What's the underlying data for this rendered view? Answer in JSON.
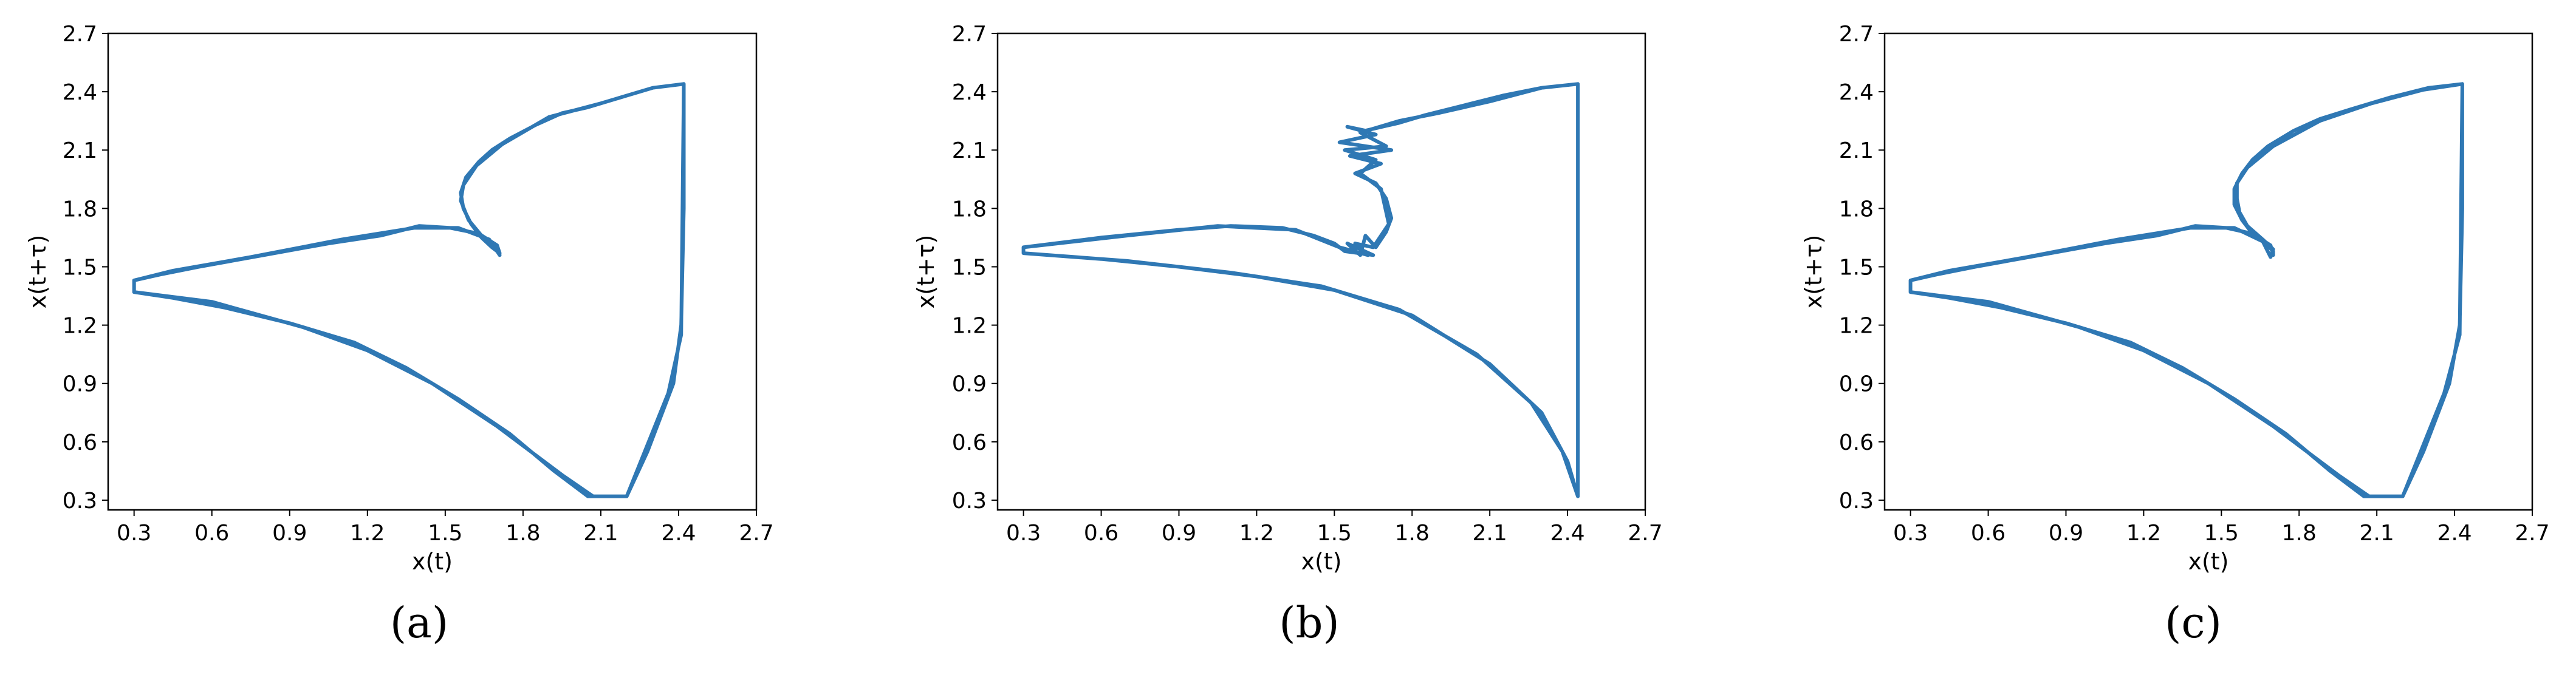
{
  "chart_data": [
    {
      "type": "line",
      "panel_label": "(a)",
      "xlabel": "x(t)",
      "ylabel": "x(t+τ)",
      "xlim": [
        0.2,
        2.7
      ],
      "ylim": [
        0.25,
        2.7
      ],
      "xticks": [
        "0.3",
        "0.6",
        "0.9",
        "1.2",
        "1.5",
        "1.8",
        "2.1",
        "2.4",
        "2.7"
      ],
      "yticks": [
        "0.3",
        "0.6",
        "0.9",
        "1.2",
        "1.5",
        "1.8",
        "2.1",
        "2.4",
        "2.7"
      ],
      "color": "#2f78b4",
      "grid": false,
      "points": [
        [
          2.42,
          2.44
        ],
        [
          2.3,
          2.42
        ],
        [
          2.2,
          2.38
        ],
        [
          2.05,
          2.32
        ],
        [
          1.95,
          2.29
        ],
        [
          1.85,
          2.23
        ],
        [
          1.75,
          2.16
        ],
        [
          1.68,
          2.1
        ],
        [
          1.63,
          2.04
        ],
        [
          1.58,
          1.96
        ],
        [
          1.56,
          1.88
        ],
        [
          1.57,
          1.8
        ],
        [
          1.6,
          1.72
        ],
        [
          1.64,
          1.65
        ],
        [
          1.68,
          1.6
        ],
        [
          1.71,
          1.57
        ],
        [
          1.7,
          1.61
        ],
        [
          1.63,
          1.67
        ],
        [
          1.52,
          1.7
        ],
        [
          1.4,
          1.71
        ],
        [
          1.25,
          1.66
        ],
        [
          1.05,
          1.62
        ],
        [
          0.8,
          1.56
        ],
        [
          0.55,
          1.5
        ],
        [
          0.4,
          1.46
        ],
        [
          0.3,
          1.43
        ],
        [
          0.3,
          1.37
        ],
        [
          0.45,
          1.34
        ],
        [
          0.65,
          1.29
        ],
        [
          0.9,
          1.21
        ],
        [
          1.15,
          1.11
        ],
        [
          1.35,
          0.98
        ],
        [
          1.55,
          0.82
        ],
        [
          1.75,
          0.64
        ],
        [
          1.92,
          0.45
        ],
        [
          2.05,
          0.32
        ],
        [
          2.2,
          0.32
        ],
        [
          2.28,
          0.55
        ],
        [
          2.38,
          0.9
        ],
        [
          2.41,
          1.2
        ],
        [
          2.42,
          1.8
        ],
        [
          2.42,
          2.44
        ],
        [
          2.3,
          2.42
        ],
        [
          2.1,
          2.34
        ],
        [
          1.9,
          2.27
        ],
        [
          1.72,
          2.13
        ],
        [
          1.62,
          2.02
        ],
        [
          1.57,
          1.92
        ],
        [
          1.56,
          1.84
        ],
        [
          1.59,
          1.74
        ],
        [
          1.64,
          1.66
        ],
        [
          1.7,
          1.59
        ],
        [
          1.71,
          1.56
        ],
        [
          1.67,
          1.64
        ],
        [
          1.55,
          1.7
        ],
        [
          1.38,
          1.7
        ],
        [
          1.1,
          1.64
        ],
        [
          0.75,
          1.55
        ],
        [
          0.45,
          1.48
        ],
        [
          0.3,
          1.43
        ],
        [
          0.3,
          1.37
        ],
        [
          0.6,
          1.32
        ],
        [
          0.95,
          1.19
        ],
        [
          1.2,
          1.07
        ],
        [
          1.45,
          0.9
        ],
        [
          1.7,
          0.68
        ],
        [
          1.95,
          0.43
        ],
        [
          2.07,
          0.32
        ],
        [
          2.2,
          0.32
        ],
        [
          2.36,
          0.85
        ],
        [
          2.41,
          1.15
        ],
        [
          2.42,
          2.44
        ]
      ]
    },
    {
      "type": "line",
      "panel_label": "(b)",
      "xlabel": "x(t)",
      "ylabel": "x(t+τ)",
      "xlim": [
        0.2,
        2.7
      ],
      "ylim": [
        0.25,
        2.7
      ],
      "xticks": [
        "0.3",
        "0.6",
        "0.9",
        "1.2",
        "1.5",
        "1.8",
        "2.1",
        "2.4",
        "2.7"
      ],
      "yticks": [
        "0.3",
        "0.6",
        "0.9",
        "1.2",
        "1.5",
        "1.8",
        "2.1",
        "2.4",
        "2.7"
      ],
      "color": "#2f78b4",
      "grid": false,
      "points": [
        [
          2.44,
          2.44
        ],
        [
          2.3,
          2.42
        ],
        [
          2.15,
          2.38
        ],
        [
          2.0,
          2.33
        ],
        [
          1.85,
          2.28
        ],
        [
          1.75,
          2.24
        ],
        [
          1.62,
          2.2
        ],
        [
          1.55,
          2.22
        ],
        [
          1.66,
          2.18
        ],
        [
          1.52,
          2.14
        ],
        [
          1.72,
          2.1
        ],
        [
          1.56,
          2.07
        ],
        [
          1.68,
          2.03
        ],
        [
          1.58,
          1.98
        ],
        [
          1.66,
          1.93
        ],
        [
          1.7,
          1.85
        ],
        [
          1.72,
          1.75
        ],
        [
          1.7,
          1.68
        ],
        [
          1.66,
          1.6
        ],
        [
          1.62,
          1.66
        ],
        [
          1.6,
          1.56
        ],
        [
          1.55,
          1.62
        ],
        [
          1.65,
          1.56
        ],
        [
          1.54,
          1.58
        ],
        [
          1.5,
          1.62
        ],
        [
          1.42,
          1.66
        ],
        [
          1.3,
          1.7
        ],
        [
          1.1,
          1.71
        ],
        [
          0.9,
          1.69
        ],
        [
          0.6,
          1.65
        ],
        [
          0.3,
          1.6
        ],
        [
          0.3,
          1.57
        ],
        [
          0.6,
          1.54
        ],
        [
          0.9,
          1.5
        ],
        [
          1.2,
          1.45
        ],
        [
          1.5,
          1.38
        ],
        [
          1.8,
          1.25
        ],
        [
          2.1,
          1.0
        ],
        [
          2.3,
          0.75
        ],
        [
          2.4,
          0.5
        ],
        [
          2.44,
          0.32
        ],
        [
          2.44,
          2.44
        ],
        [
          2.3,
          2.42
        ],
        [
          2.1,
          2.35
        ],
        [
          1.9,
          2.29
        ],
        [
          1.75,
          2.25
        ],
        [
          1.6,
          2.19
        ],
        [
          1.7,
          2.12
        ],
        [
          1.54,
          2.1
        ],
        [
          1.66,
          2.05
        ],
        [
          1.6,
          1.98
        ],
        [
          1.68,
          1.9
        ],
        [
          1.71,
          1.72
        ],
        [
          1.65,
          1.6
        ],
        [
          1.58,
          1.62
        ],
        [
          1.63,
          1.56
        ],
        [
          1.52,
          1.6
        ],
        [
          1.35,
          1.69
        ],
        [
          1.05,
          1.71
        ],
        [
          0.7,
          1.66
        ],
        [
          0.3,
          1.6
        ],
        [
          0.3,
          1.57
        ],
        [
          0.7,
          1.53
        ],
        [
          1.1,
          1.47
        ],
        [
          1.45,
          1.4
        ],
        [
          1.75,
          1.28
        ],
        [
          2.05,
          1.05
        ],
        [
          2.26,
          0.8
        ],
        [
          2.38,
          0.55
        ],
        [
          2.44,
          0.32
        ]
      ]
    },
    {
      "type": "line",
      "panel_label": "(c)",
      "xlabel": "x(t)",
      "ylabel": "x(t+τ)",
      "xlim": [
        0.2,
        2.7
      ],
      "ylim": [
        0.25,
        2.7
      ],
      "xticks": [
        "0.3",
        "0.6",
        "0.9",
        "1.2",
        "1.5",
        "1.8",
        "2.1",
        "2.4",
        "2.7"
      ],
      "yticks": [
        "0.3",
        "0.6",
        "0.9",
        "1.2",
        "1.5",
        "1.8",
        "2.1",
        "2.4",
        "2.7"
      ],
      "color": "#2f78b4",
      "grid": false,
      "points": [
        [
          2.43,
          2.44
        ],
        [
          2.3,
          2.42
        ],
        [
          2.15,
          2.37
        ],
        [
          2.0,
          2.31
        ],
        [
          1.88,
          2.26
        ],
        [
          1.78,
          2.2
        ],
        [
          1.68,
          2.12
        ],
        [
          1.62,
          2.05
        ],
        [
          1.58,
          1.98
        ],
        [
          1.55,
          1.9
        ],
        [
          1.55,
          1.82
        ],
        [
          1.58,
          1.74
        ],
        [
          1.62,
          1.67
        ],
        [
          1.67,
          1.62
        ],
        [
          1.7,
          1.58
        ],
        [
          1.7,
          1.56
        ],
        [
          1.69,
          1.61
        ],
        [
          1.62,
          1.67
        ],
        [
          1.52,
          1.7
        ],
        [
          1.4,
          1.71
        ],
        [
          1.25,
          1.66
        ],
        [
          1.05,
          1.62
        ],
        [
          0.8,
          1.56
        ],
        [
          0.55,
          1.5
        ],
        [
          0.4,
          1.46
        ],
        [
          0.3,
          1.43
        ],
        [
          0.3,
          1.37
        ],
        [
          0.45,
          1.34
        ],
        [
          0.65,
          1.29
        ],
        [
          0.9,
          1.21
        ],
        [
          1.15,
          1.11
        ],
        [
          1.35,
          0.98
        ],
        [
          1.55,
          0.82
        ],
        [
          1.75,
          0.64
        ],
        [
          1.92,
          0.45
        ],
        [
          2.05,
          0.32
        ],
        [
          2.2,
          0.32
        ],
        [
          2.28,
          0.55
        ],
        [
          2.38,
          0.9
        ],
        [
          2.42,
          1.2
        ],
        [
          2.43,
          1.8
        ],
        [
          2.43,
          2.44
        ],
        [
          2.28,
          2.41
        ],
        [
          2.08,
          2.34
        ],
        [
          1.88,
          2.25
        ],
        [
          1.7,
          2.12
        ],
        [
          1.6,
          2.01
        ],
        [
          1.56,
          1.93
        ],
        [
          1.56,
          1.85
        ],
        [
          1.57,
          1.78
        ],
        [
          1.6,
          1.71
        ],
        [
          1.66,
          1.64
        ],
        [
          1.7,
          1.59
        ],
        [
          1.69,
          1.55
        ],
        [
          1.66,
          1.63
        ],
        [
          1.55,
          1.7
        ],
        [
          1.38,
          1.7
        ],
        [
          1.1,
          1.64
        ],
        [
          0.75,
          1.55
        ],
        [
          0.45,
          1.48
        ],
        [
          0.3,
          1.43
        ],
        [
          0.3,
          1.37
        ],
        [
          0.6,
          1.32
        ],
        [
          0.95,
          1.19
        ],
        [
          1.2,
          1.07
        ],
        [
          1.45,
          0.9
        ],
        [
          1.7,
          0.68
        ],
        [
          1.95,
          0.43
        ],
        [
          2.07,
          0.32
        ],
        [
          2.2,
          0.32
        ],
        [
          2.36,
          0.85
        ],
        [
          2.42,
          1.15
        ],
        [
          2.43,
          2.44
        ]
      ]
    }
  ]
}
